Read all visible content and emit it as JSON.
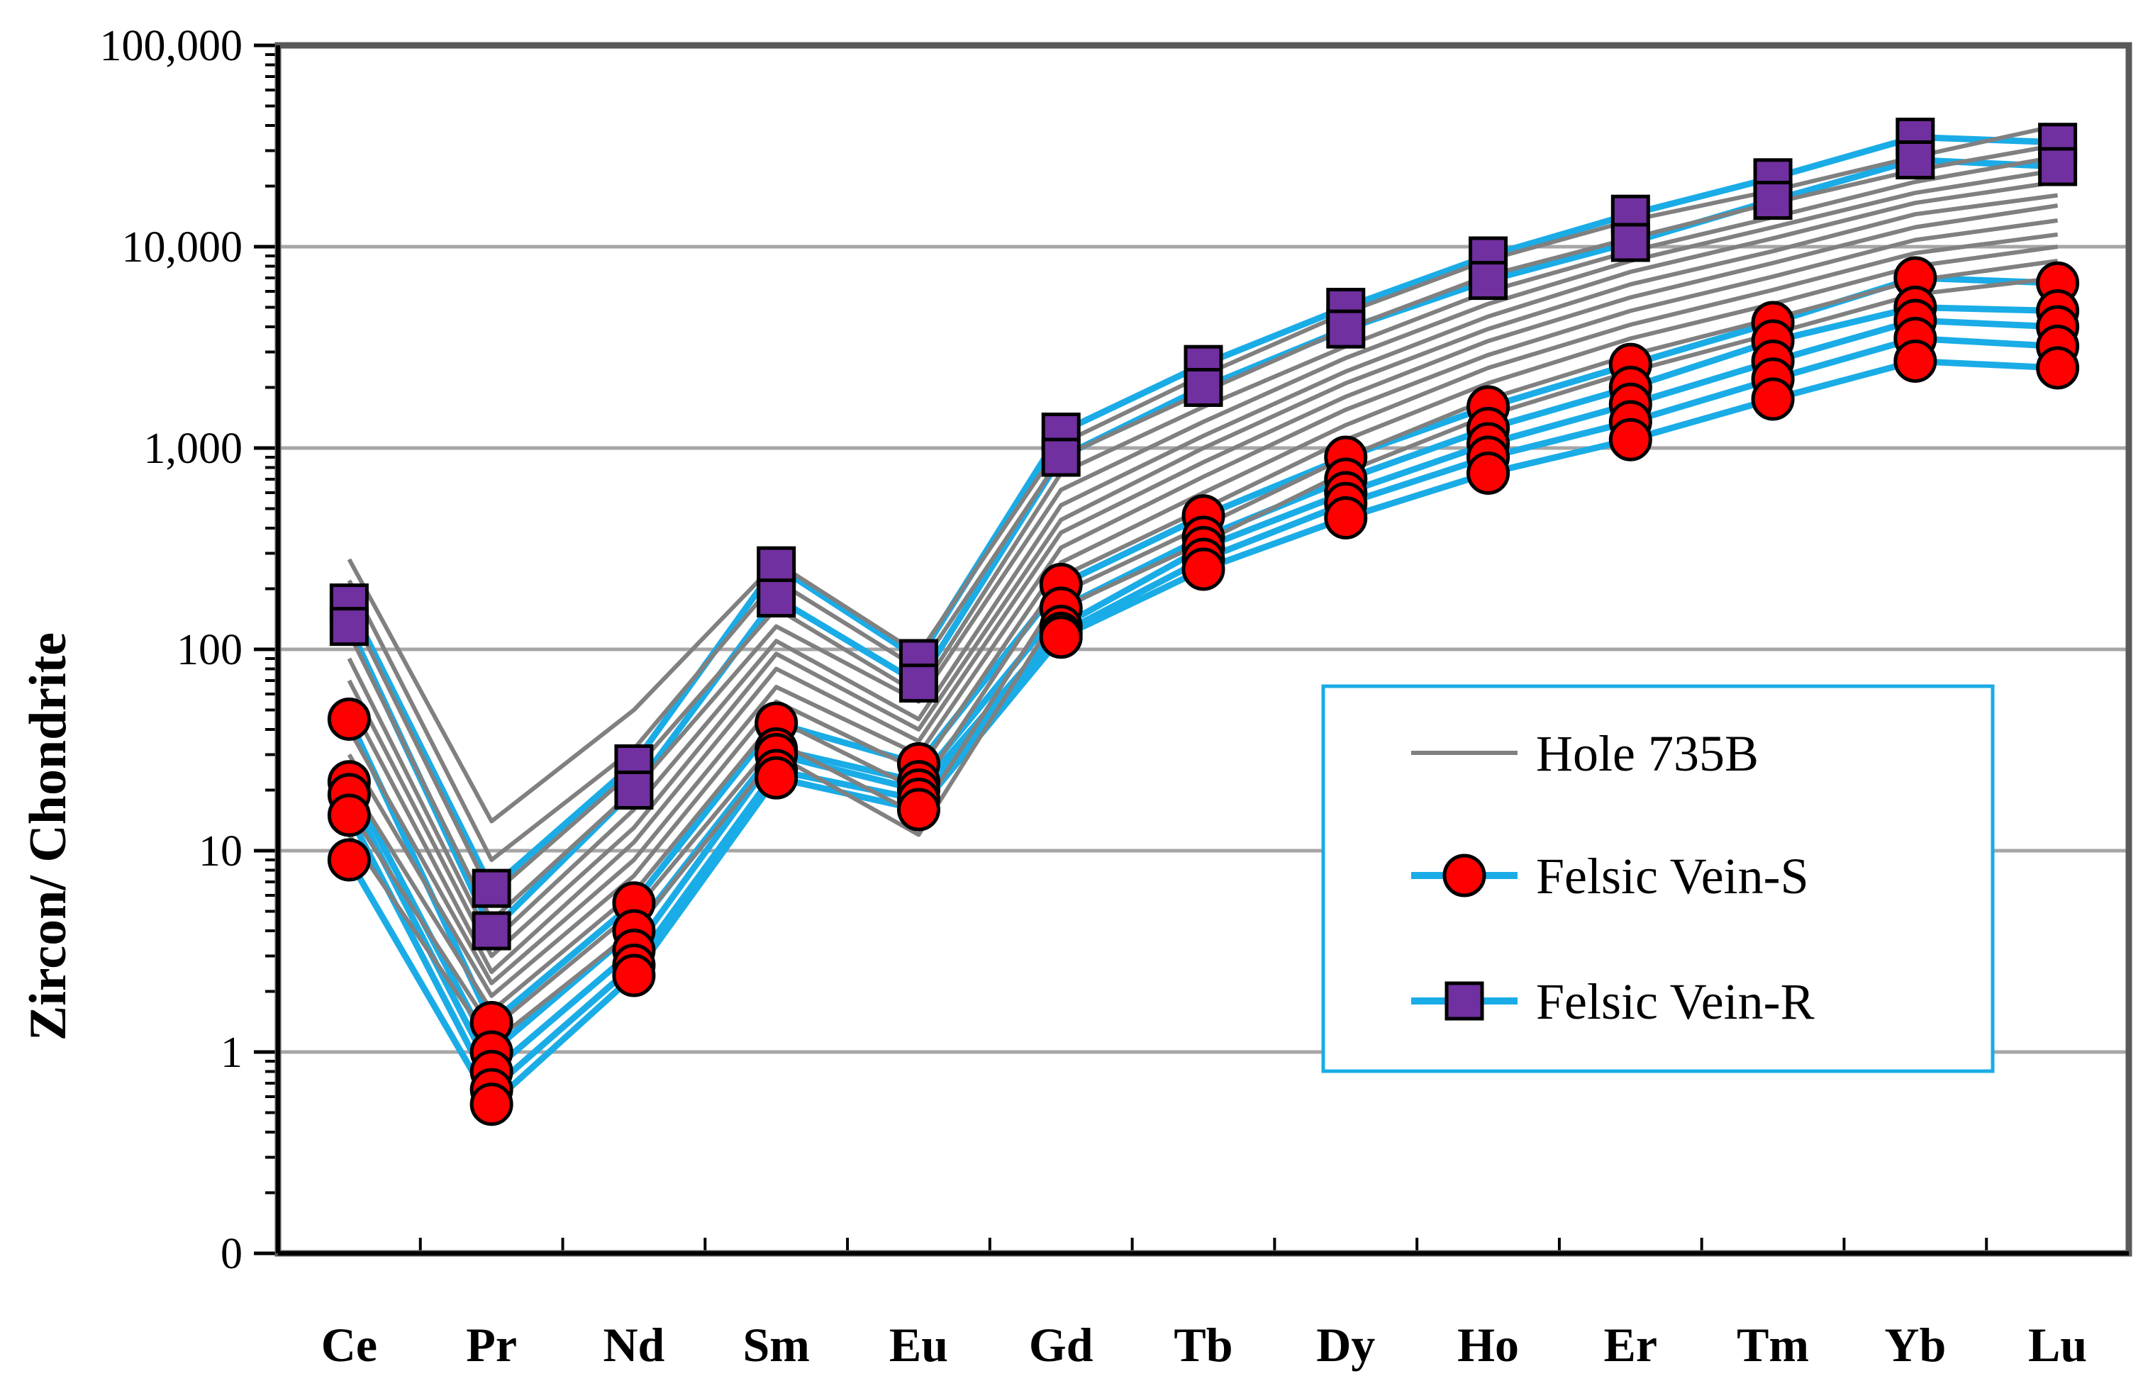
{
  "chart_data": {
    "type": "line",
    "title": "",
    "xlabel": "",
    "ylabel": "Zircon/ Chondrite",
    "yscale": "log",
    "ylim": [
      0.1,
      100000
    ],
    "y_ticks": [
      {
        "value": 0.1,
        "label": "0"
      },
      {
        "value": 1,
        "label": "1"
      },
      {
        "value": 10,
        "label": "10"
      },
      {
        "value": 100,
        "label": "100"
      },
      {
        "value": 1000,
        "label": "1,000"
      },
      {
        "value": 10000,
        "label": "10,000"
      },
      {
        "value": 100000,
        "label": "100,000"
      }
    ],
    "grid": true,
    "legend_position": "right-middle",
    "categories": [
      "Ce",
      "Pr",
      "Nd",
      "Sm",
      "Eu",
      "Gd",
      "Tb",
      "Dy",
      "Ho",
      "Er",
      "Tm",
      "Yb",
      "Lu"
    ],
    "colors": {
      "hole": "#808080",
      "vein_line": "#1aace6",
      "vein_s_marker": "#ff0000",
      "vein_r_marker": "#7030a0",
      "grid": "#a6a6a6",
      "axis": "#595959"
    },
    "legend": [
      {
        "label": "Hole 735B",
        "color": "#808080",
        "marker": "none"
      },
      {
        "label": "Felsic Vein-S",
        "color": "#1aace6",
        "marker": "circle",
        "marker_color": "#ff0000"
      },
      {
        "label": "Felsic Vein-R",
        "color": "#1aace6",
        "marker": "square",
        "marker_color": "#7030a0"
      }
    ],
    "series": [
      {
        "name": "Hole 735B",
        "values": [
          280,
          14,
          50,
          270,
          95,
          1050,
          2300,
          4700,
          8600,
          13500,
          19000,
          28000,
          40000
        ]
      },
      {
        "name": "Hole 735B",
        "values": [
          220,
          9,
          32,
          220,
          80,
          900,
          1900,
          3900,
          7200,
          11000,
          16500,
          24000,
          32000
        ]
      },
      {
        "name": "Hole 735B",
        "values": [
          160,
          6,
          25,
          160,
          60,
          750,
          1600,
          3200,
          6000,
          9500,
          14000,
          21000,
          28000
        ]
      },
      {
        "name": "Hole 735B",
        "values": [
          120,
          4.5,
          20,
          130,
          55,
          620,
          1350,
          2800,
          5200,
          8500,
          12500,
          18500,
          24000
        ]
      },
      {
        "name": "Hole 735B",
        "values": [
          90,
          3.5,
          16,
          110,
          45,
          520,
          1150,
          2400,
          4500,
          7500,
          11000,
          16500,
          21000
        ]
      },
      {
        "name": "Hole 735B",
        "values": [
          70,
          3,
          13,
          95,
          40,
          440,
          1000,
          2100,
          3900,
          6500,
          9500,
          14500,
          18000
        ]
      },
      {
        "name": "Hole 735B",
        "values": [
          55,
          2.5,
          11,
          80,
          35,
          380,
          850,
          1800,
          3400,
          5600,
          8300,
          12500,
          16000
        ]
      },
      {
        "name": "Hole 735B",
        "values": [
          40,
          2.2,
          9,
          65,
          30,
          320,
          720,
          1550,
          2900,
          4800,
          7100,
          10800,
          13500
        ]
      },
      {
        "name": "Hole 735B",
        "values": [
          30,
          1.9,
          7.5,
          55,
          25,
          270,
          600,
          1300,
          2500,
          4100,
          6100,
          9300,
          11500
        ]
      },
      {
        "name": "Hole 735B",
        "values": [
          22,
          1.6,
          6.2,
          45,
          20,
          230,
          500,
          1100,
          2100,
          3500,
          5200,
          8000,
          10000
        ]
      },
      {
        "name": "Hole 735B",
        "values": [
          16,
          1.3,
          5,
          35,
          15,
          190,
          410,
          900,
          1750,
          2900,
          4400,
          6800,
          8500
        ]
      },
      {
        "name": "Hole 735B",
        "values": [
          12,
          1.1,
          4,
          30,
          12,
          160,
          340,
          760,
          1450,
          2400,
          3700,
          5800,
          7000
        ]
      },
      {
        "name": "Felsic Vein-S",
        "values": [
          45,
          1.4,
          5.5,
          43,
          27,
          210,
          460,
          900,
          1600,
          2600,
          4200,
          7000,
          6600
        ]
      },
      {
        "name": "Felsic Vein-S",
        "values": [
          22,
          1.0,
          4.0,
          32,
          22,
          160,
          360,
          700,
          1250,
          2000,
          3400,
          5000,
          4800
        ]
      },
      {
        "name": "Felsic Vein-S",
        "values": [
          19,
          0.8,
          3.2,
          30,
          20,
          130,
          320,
          600,
          1050,
          1650,
          2700,
          4300,
          4000
        ]
      },
      {
        "name": "Felsic Vein-S",
        "values": [
          15,
          0.65,
          2.7,
          25,
          18,
          120,
          280,
          530,
          900,
          1350,
          2200,
          3500,
          3200
        ]
      },
      {
        "name": "Felsic Vein-S",
        "values": [
          9,
          0.55,
          2.4,
          23,
          16,
          115,
          250,
          450,
          750,
          1100,
          1750,
          2700,
          2500
        ]
      },
      {
        "name": "Felsic Vein-R",
        "values": [
          170,
          6.5,
          27,
          260,
          90,
          1200,
          2600,
          5000,
          9000,
          14500,
          22000,
          35000,
          33000
        ]
      },
      {
        "name": "Felsic Vein-R",
        "values": [
          130,
          4.0,
          20,
          180,
          68,
          900,
          2000,
          3900,
          6800,
          10500,
          17000,
          27000,
          25000
        ]
      }
    ]
  }
}
